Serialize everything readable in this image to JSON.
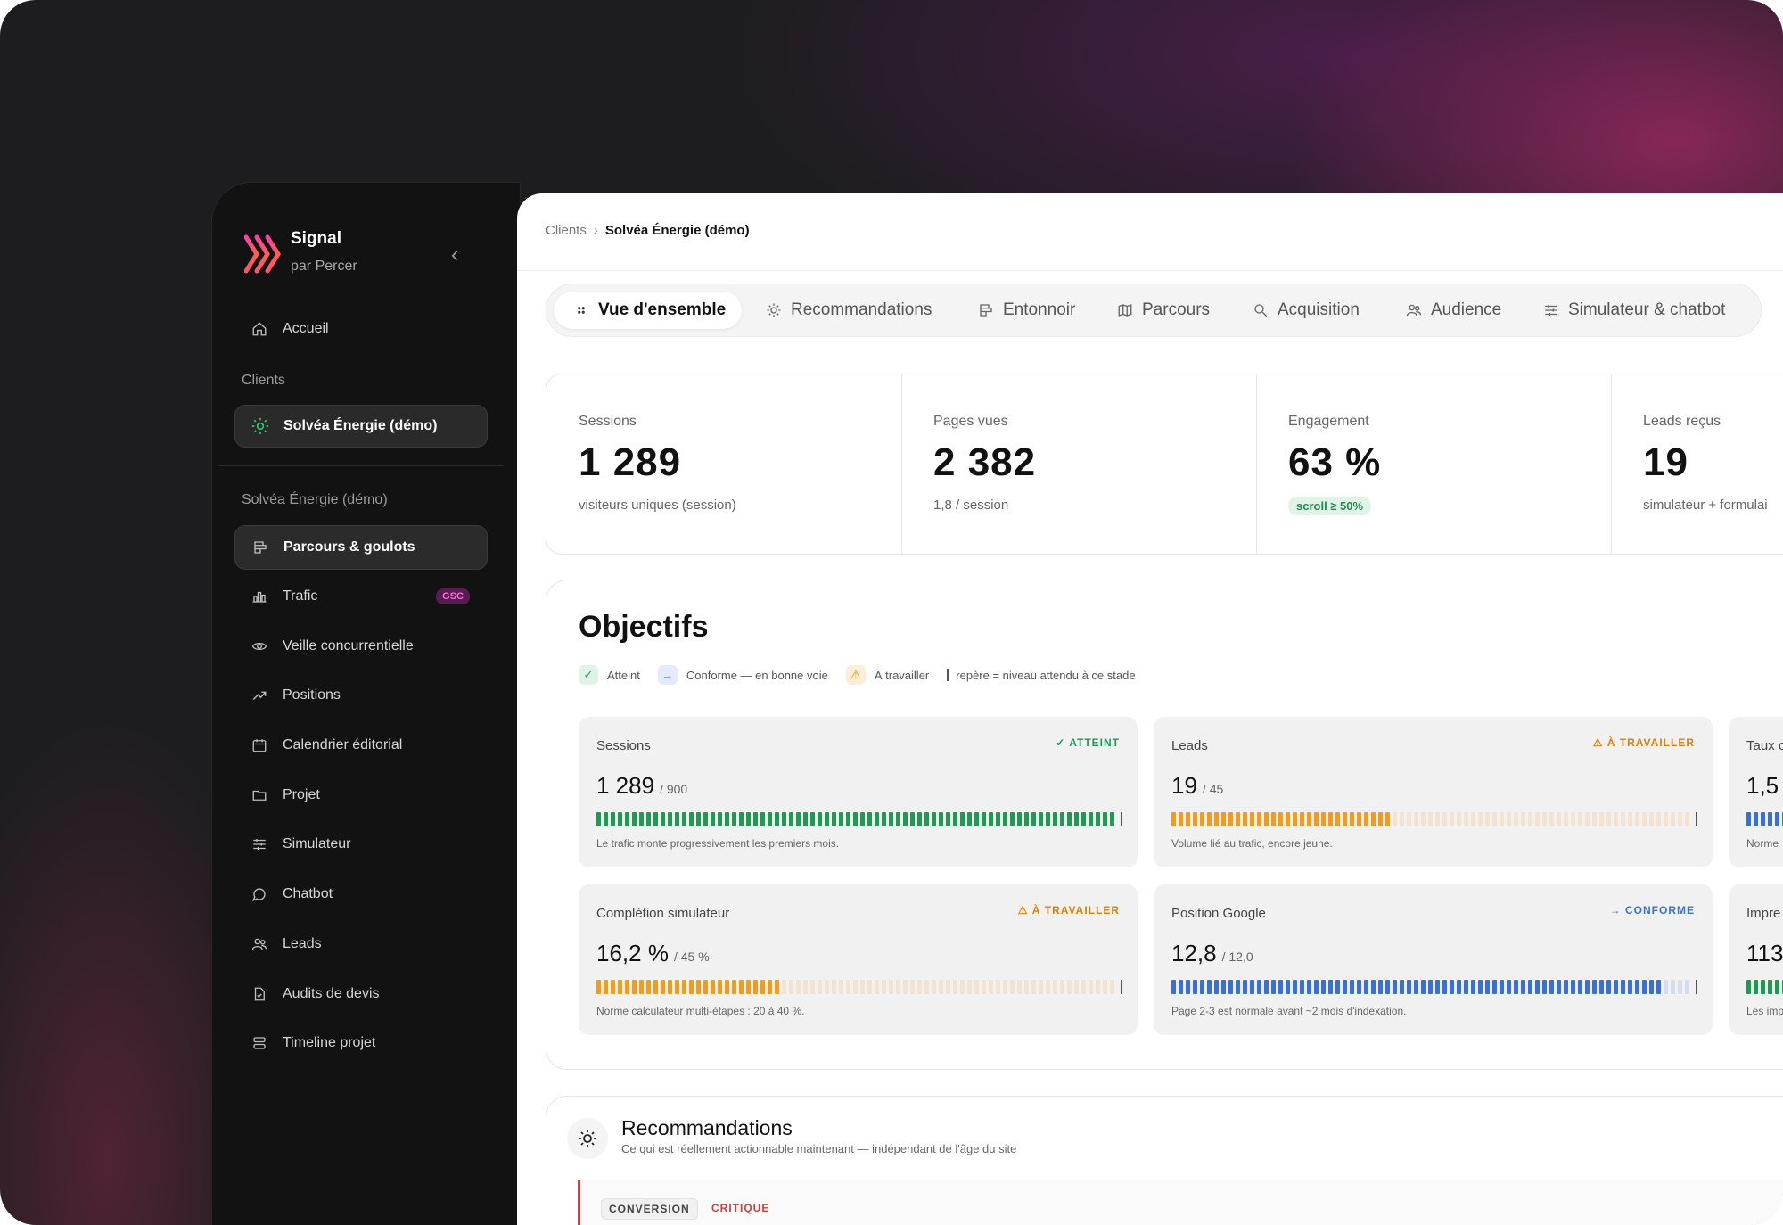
{
  "brand": {
    "name": "Signal",
    "subtitle": "par Percer",
    "collapse_glyph": "‹"
  },
  "sidebar": {
    "home": "Accueil",
    "clients_label": "Clients",
    "active_client": "Solvéa Énergie (démo)",
    "client_section_label": "Solvéa Énergie (démo)",
    "items": [
      {
        "label": "Parcours & goulots",
        "icon": "funnel-icon",
        "active": true
      },
      {
        "label": "Trafic",
        "icon": "bar-chart-icon",
        "badge": "GSC"
      },
      {
        "label": "Veille concurrentielle",
        "icon": "eye-icon"
      },
      {
        "label": "Positions",
        "icon": "trend-up-icon"
      },
      {
        "label": "Calendrier éditorial",
        "icon": "calendar-icon"
      },
      {
        "label": "Projet",
        "icon": "folder-icon"
      },
      {
        "label": "Simulateur",
        "icon": "sliders-icon"
      },
      {
        "label": "Chatbot",
        "icon": "chat-icon"
      },
      {
        "label": "Leads",
        "icon": "users-icon"
      },
      {
        "label": "Audits de devis",
        "icon": "file-check-icon"
      },
      {
        "label": "Timeline projet",
        "icon": "timeline-icon"
      }
    ]
  },
  "breadcrumb": {
    "root": "Clients",
    "sep": "›",
    "current": "Solvéa Énergie (démo)"
  },
  "tabs": [
    {
      "label": "Vue d'ensemble",
      "icon": "grid-icon",
      "active": true
    },
    {
      "label": "Recommandations",
      "icon": "sun-icon"
    },
    {
      "label": "Entonnoir",
      "icon": "funnel-icon"
    },
    {
      "label": "Parcours",
      "icon": "map-icon"
    },
    {
      "label": "Acquisition",
      "icon": "search-icon"
    },
    {
      "label": "Audience",
      "icon": "users-icon"
    },
    {
      "label": "Simulateur & chatbot",
      "icon": "sliders-icon"
    }
  ],
  "kpis": [
    {
      "label": "Sessions",
      "value": "1 289",
      "sub": "visiteurs uniques (session)"
    },
    {
      "label": "Pages vues",
      "value": "2 382",
      "sub": "1,8 / session"
    },
    {
      "label": "Engagement",
      "value": "63 %",
      "chip": "scroll ≥ 50%"
    },
    {
      "label": "Leads reçus",
      "value": "19",
      "sub": "simulateur + formulai"
    }
  ],
  "objectives": {
    "title": "Objectifs",
    "legend": {
      "reached": "Atteint",
      "on_track": "Conforme — en bonne voie",
      "to_work": "À travailler",
      "marker": "repère = niveau attendu à ce stade"
    },
    "goals": [
      {
        "name": "Sessions",
        "value": "1 289",
        "target": "/ 900",
        "status": "ATTEINT",
        "status_kind": "reached",
        "fill": 1.0,
        "marker": 1.0,
        "color": "#1f9a55",
        "note": "Le trafic monte progressivement les premiers mois."
      },
      {
        "name": "Leads",
        "value": "19",
        "target": "/ 45",
        "status": "À TRAVAILLER",
        "status_kind": "work",
        "fill": 0.42,
        "marker": 1.0,
        "color": "#f59a1b",
        "note": "Volume lié au trafic, encore jeune."
      },
      {
        "name": "Taux c",
        "value": "1,5",
        "status_kind": "ontrack",
        "color": "#3b6fd8",
        "note": "Norme"
      },
      {
        "name": "Complétion simulateur",
        "value": "16,2 %",
        "target": "/ 45 %",
        "status": "À TRAVAILLER",
        "status_kind": "work",
        "fill": 0.36,
        "marker": 1.0,
        "color": "#f59a1b",
        "note": "Norme calculateur multi-étapes : 20 à 40 %."
      },
      {
        "name": "Position Google",
        "value": "12,8",
        "target": "/ 12,0",
        "status": "CONFORME",
        "status_kind": "ontrack",
        "fill": 0.94,
        "marker": 1.0,
        "color": "#3b6fd8",
        "note": "Page 2-3 est normale avant ~2 mois d'indexation."
      },
      {
        "name": "Impre",
        "value": "113",
        "status_kind": "reached",
        "color": "#1f9a55",
        "note": "Les imp"
      }
    ]
  },
  "recommandations": {
    "title": "Recommandations",
    "subtitle": "Ce qui est réellement actionnable maintenant — indépendant de l'âge du site",
    "first_item": {
      "category": "CONVERSION",
      "severity": "CRITIQUE"
    }
  },
  "colors": {
    "reached": "#1f9a55",
    "ontrack": "#3b6fd8",
    "work": "#f59a1b",
    "critical": "#d63b3b",
    "accent_magenta": "#ff3fa8"
  }
}
